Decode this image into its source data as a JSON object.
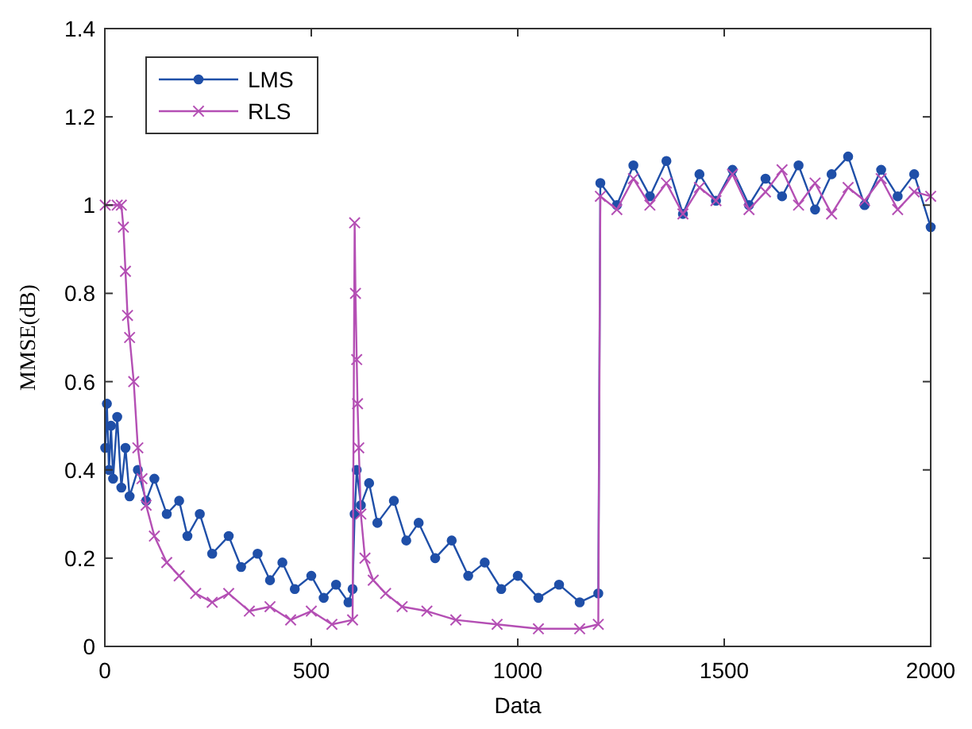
{
  "chart_data": {
    "type": "line",
    "xlabel": "Data",
    "ylabel": "MMSE(dB)",
    "xlim": [
      0,
      2000
    ],
    "ylim": [
      0,
      1.4
    ],
    "xticks": [
      0,
      500,
      1000,
      1500,
      2000
    ],
    "yticks": [
      0,
      0.2,
      0.4,
      0.6,
      0.8,
      1,
      1.2,
      1.4
    ],
    "grid": false,
    "legend": "top left",
    "line_style": "solid",
    "series": [
      {
        "name": "LMS",
        "color": "#1f4fa8",
        "marker": "circle",
        "x": [
          1,
          5,
          10,
          15,
          20,
          30,
          40,
          50,
          60,
          80,
          100,
          120,
          150,
          180,
          200,
          230,
          260,
          300,
          330,
          370,
          400,
          430,
          460,
          500,
          530,
          560,
          590,
          600,
          605,
          610,
          620,
          640,
          660,
          700,
          730,
          760,
          800,
          840,
          880,
          920,
          960,
          1000,
          1050,
          1100,
          1150,
          1195,
          1200,
          1240,
          1280,
          1320,
          1360,
          1400,
          1440,
          1480,
          1520,
          1560,
          1600,
          1640,
          1680,
          1720,
          1760,
          1800,
          1840,
          1880,
          1920,
          1960,
          2000
        ],
        "values": [
          0.45,
          0.55,
          0.4,
          0.5,
          0.38,
          0.52,
          0.36,
          0.45,
          0.34,
          0.4,
          0.33,
          0.38,
          0.3,
          0.33,
          0.25,
          0.3,
          0.21,
          0.25,
          0.18,
          0.21,
          0.15,
          0.19,
          0.13,
          0.16,
          0.11,
          0.14,
          0.1,
          0.13,
          0.3,
          0.4,
          0.32,
          0.37,
          0.28,
          0.33,
          0.24,
          0.28,
          0.2,
          0.24,
          0.16,
          0.19,
          0.13,
          0.16,
          0.11,
          0.14,
          0.1,
          0.12,
          1.05,
          1.0,
          1.09,
          1.02,
          1.1,
          0.98,
          1.07,
          1.01,
          1.08,
          1.0,
          1.06,
          1.02,
          1.09,
          0.99,
          1.07,
          1.11,
          1.0,
          1.08,
          1.02,
          1.07,
          0.95
        ]
      },
      {
        "name": "RLS",
        "color": "#b44fb4",
        "marker": "cross",
        "x": [
          1,
          30,
          40,
          45,
          50,
          55,
          60,
          70,
          80,
          90,
          100,
          120,
          150,
          180,
          220,
          260,
          300,
          350,
          400,
          450,
          500,
          550,
          600,
          605,
          607,
          610,
          612,
          615,
          620,
          630,
          650,
          680,
          720,
          780,
          850,
          950,
          1050,
          1150,
          1195,
          1200,
          1240,
          1280,
          1320,
          1360,
          1400,
          1440,
          1480,
          1520,
          1560,
          1600,
          1640,
          1680,
          1720,
          1760,
          1800,
          1840,
          1880,
          1920,
          1960,
          2000
        ],
        "values": [
          1.0,
          1.0,
          1.0,
          0.95,
          0.85,
          0.75,
          0.7,
          0.6,
          0.45,
          0.38,
          0.32,
          0.25,
          0.19,
          0.16,
          0.12,
          0.1,
          0.12,
          0.08,
          0.09,
          0.06,
          0.08,
          0.05,
          0.06,
          0.96,
          0.8,
          0.65,
          0.55,
          0.45,
          0.3,
          0.2,
          0.15,
          0.12,
          0.09,
          0.08,
          0.06,
          0.05,
          0.04,
          0.04,
          0.05,
          1.02,
          0.99,
          1.06,
          1.0,
          1.05,
          0.98,
          1.04,
          1.01,
          1.07,
          0.99,
          1.03,
          1.08,
          1.0,
          1.05,
          0.98,
          1.04,
          1.01,
          1.06,
          0.99,
          1.03,
          1.02
        ]
      }
    ]
  }
}
